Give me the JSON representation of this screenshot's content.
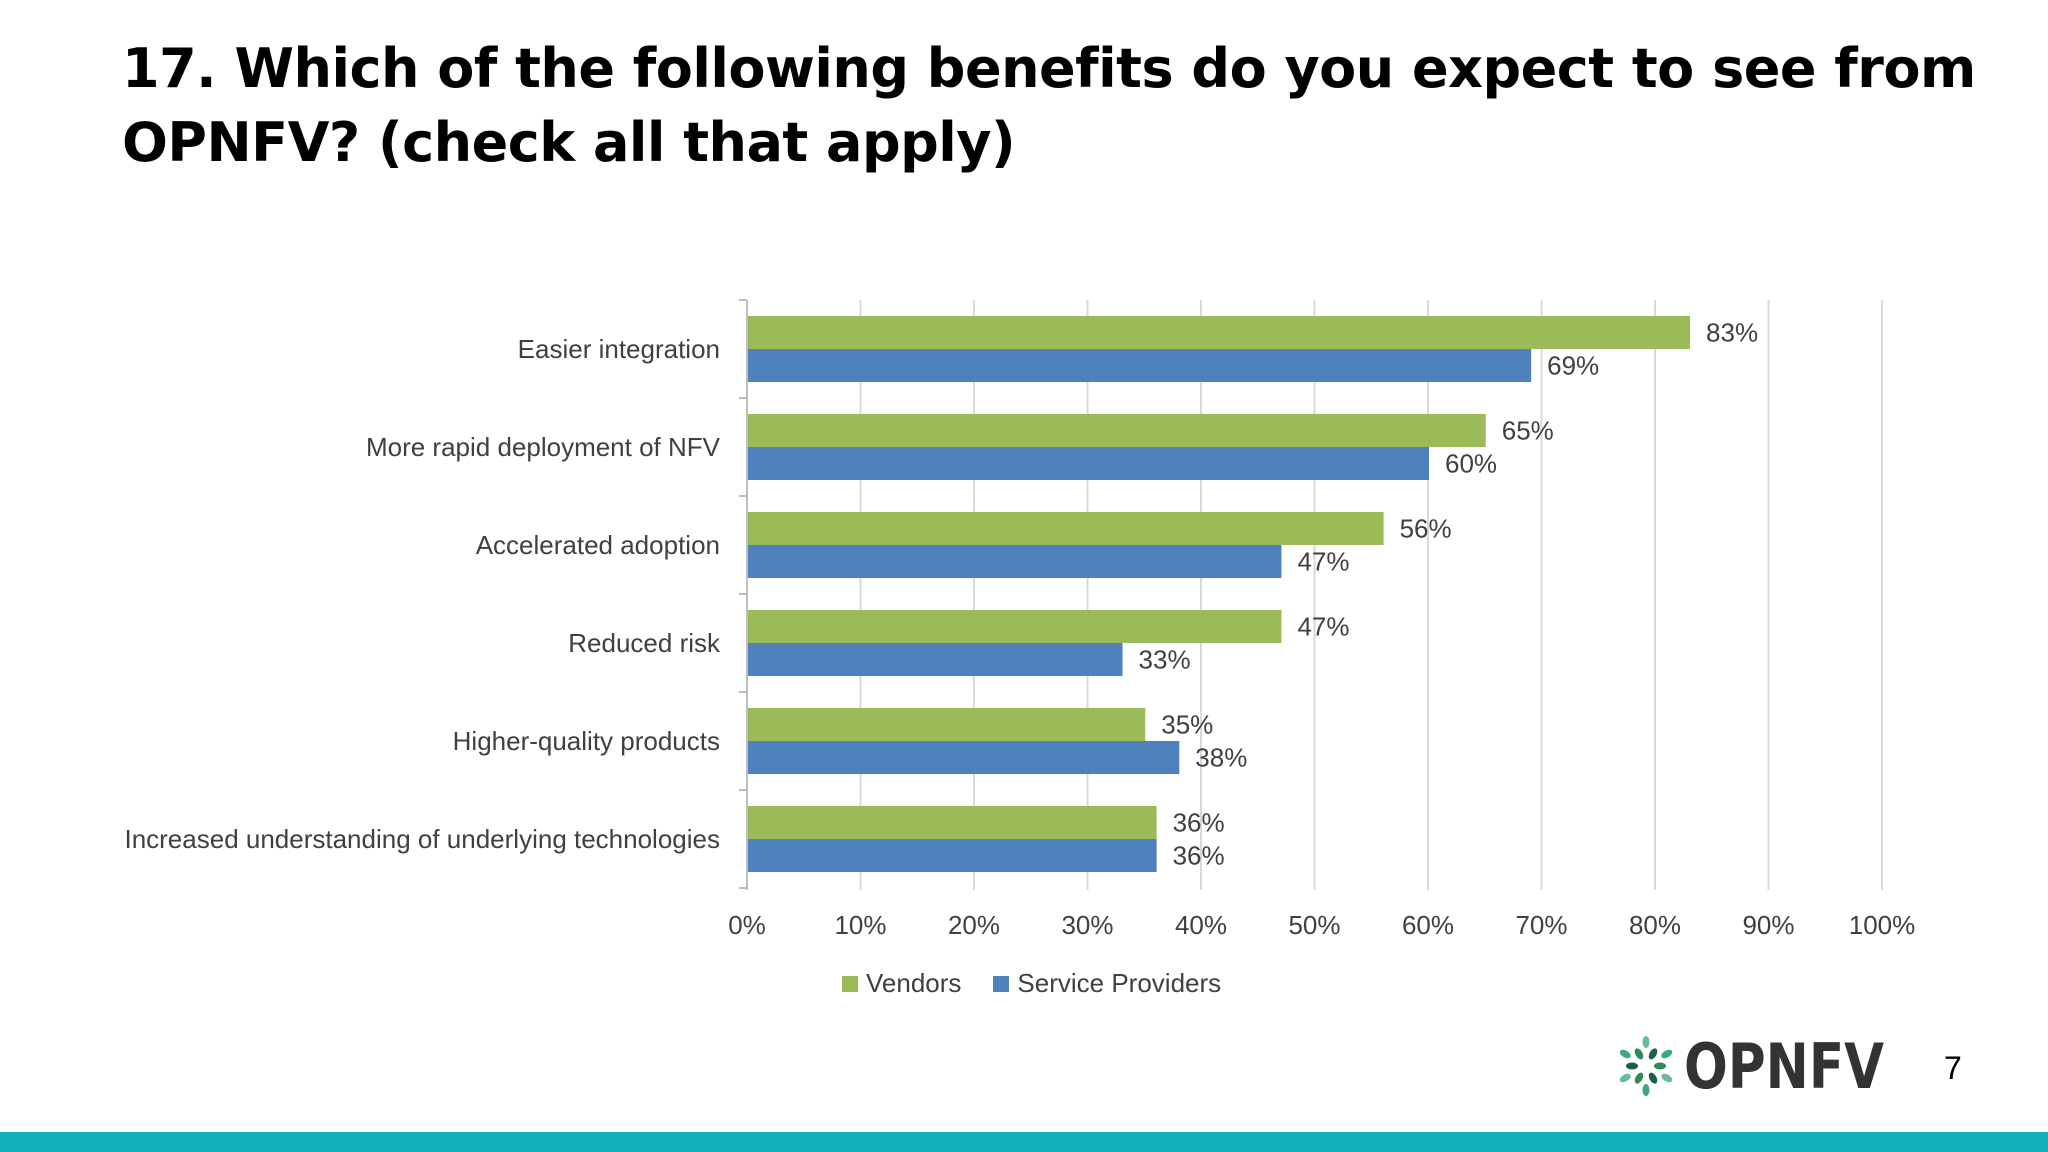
{
  "slide": {
    "title_lines": [
      "17. Which of the following benefits do you expect to see from",
      "OPNFV? (check all that apply)"
    ],
    "page_number": "7",
    "accent_color": "#15B1BB"
  },
  "logo": {
    "text": "OPNFV",
    "icon": "leaf-cluster-icon",
    "colors": [
      "#2E8B57",
      "#66BBA0",
      "#1B5E4A",
      "#3CA58C"
    ]
  },
  "chart_data": {
    "type": "bar",
    "orientation": "horizontal",
    "categories": [
      "Easier integration",
      "More rapid deployment of NFV",
      "Accelerated adoption",
      "Reduced risk",
      "Higher-quality products",
      "Increased understanding of underlying technologies"
    ],
    "series": [
      {
        "name": "Vendors",
        "color": "#9BBB59",
        "values": [
          83,
          65,
          56,
          47,
          35,
          36
        ],
        "labels": [
          "83%",
          "65%",
          "56%",
          "47%",
          "35%",
          "36%"
        ]
      },
      {
        "name": "Service Providers",
        "color": "#4F81BD",
        "values": [
          69,
          60,
          47,
          33,
          38,
          36
        ],
        "labels": [
          "69%",
          "60%",
          "47%",
          "33%",
          "38%",
          "36%"
        ]
      }
    ],
    "xlim": [
      0,
      100
    ],
    "xticks": [
      "0%",
      "10%",
      "20%",
      "30%",
      "40%",
      "50%",
      "60%",
      "70%",
      "80%",
      "90%",
      "100%"
    ],
    "grid": true,
    "legend_position": "bottom"
  }
}
